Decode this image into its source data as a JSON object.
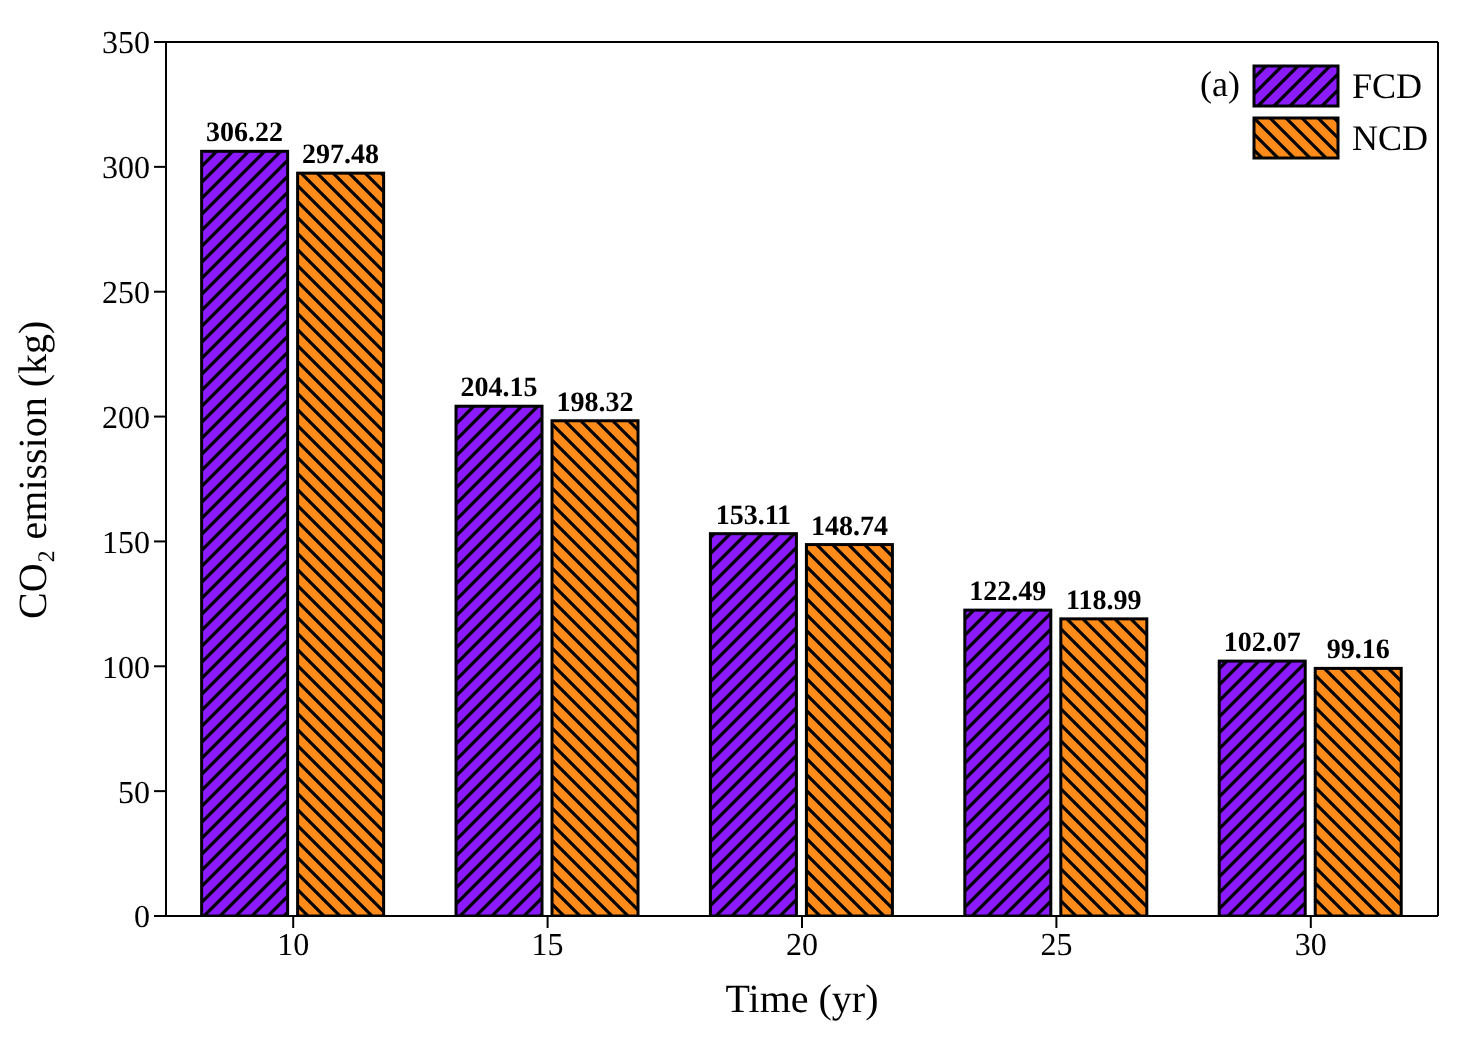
{
  "chart_data": {
    "type": "bar",
    "xlabel": "Time (yr)",
    "ylabel": "CO₂ emission (kg)",
    "categories": [
      "10",
      "15",
      "20",
      "25",
      "30"
    ],
    "series": [
      {
        "name": "FCD",
        "color": "#8b1aff",
        "values": [
          306.22,
          204.15,
          153.11,
          122.49,
          102.07
        ]
      },
      {
        "name": "NCD",
        "color": "#ff8c1a",
        "values": [
          297.48,
          198.32,
          148.74,
          118.99,
          99.16
        ]
      }
    ],
    "ylim": [
      0,
      350
    ],
    "yticks": [
      0,
      50,
      100,
      150,
      200,
      250,
      300,
      350
    ],
    "data_labels": true,
    "legend": "top right",
    "grid": false,
    "annotations": [
      "(a)"
    ]
  }
}
